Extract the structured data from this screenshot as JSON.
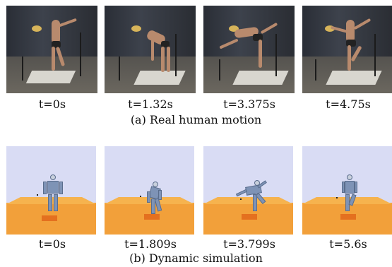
{
  "real_row": {
    "frames": [
      {
        "time": "t=0s"
      },
      {
        "time": "t=1.32s"
      },
      {
        "time": "t=3.375s"
      },
      {
        "time": "t=4.75s"
      }
    ],
    "caption": "(a) Real human motion"
  },
  "sim_row": {
    "frames": [
      {
        "time": "t=0s"
      },
      {
        "time": "t=1.809s"
      },
      {
        "time": "t=3.799s"
      },
      {
        "time": "t=5.6s"
      }
    ],
    "caption": "(b) Dynamic simulation"
  },
  "colors": {
    "sim_sky": "#d9dcf4",
    "sim_floor": "#f2a03a",
    "sim_plate": "#e4701f",
    "robot": "#7e93b6"
  }
}
